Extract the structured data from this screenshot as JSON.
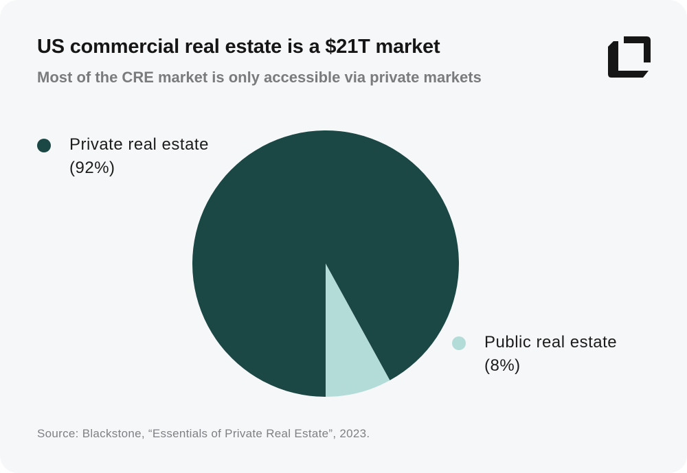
{
  "title": "US commercial real estate is a $21T market",
  "subtitle": "Most of the CRE market is only accessible via private markets",
  "source": "Source: Blackstone, “Essentials of Private Real Estate”, 2023.",
  "logo": "brand-logo",
  "chart_data": {
    "type": "pie",
    "title": "US commercial real estate is a $21T market",
    "slices": [
      {
        "label": "Private real estate",
        "value": 92,
        "value_label": "(92%)",
        "color": "#1b4744"
      },
      {
        "label": "Public real estate",
        "value": 8,
        "value_label": "(8%)",
        "color": "#b3dcd9"
      }
    ]
  }
}
